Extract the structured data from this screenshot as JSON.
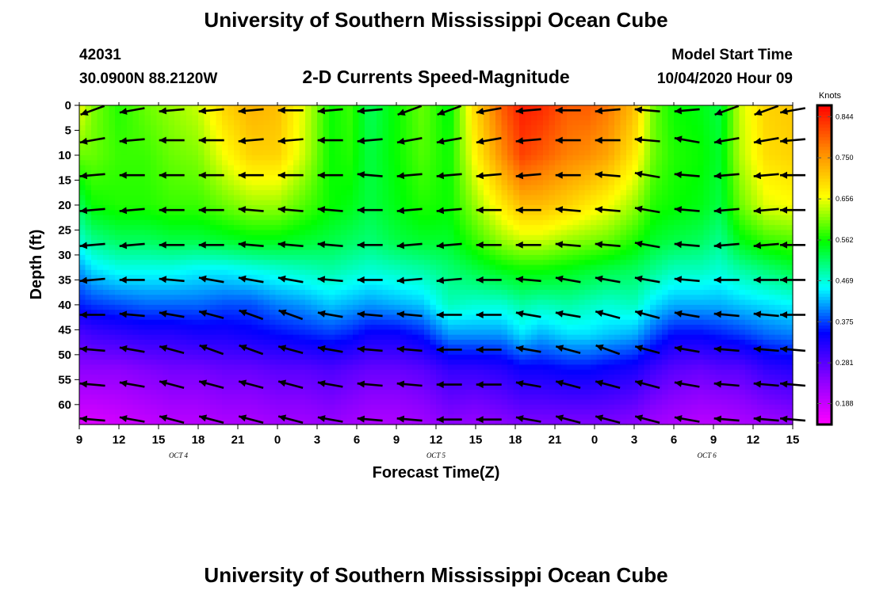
{
  "header": {
    "title": "University of Southern Mississippi Ocean Cube",
    "station_id": "42031",
    "location": "30.0900N 88.2120W",
    "chart_title": "2-D Currents Speed-Magnitude",
    "model_label": "Model Start Time",
    "model_time": "10/04/2020 Hour 09"
  },
  "footer": {
    "title": "University of Southern Mississippi Ocean Cube"
  },
  "chart_data": {
    "type": "heatmap",
    "title": "2-D Currents Speed-Magnitude",
    "xlabel": "Forecast Time(Z)",
    "ylabel": "Depth (ft)",
    "colorbar_label": "Knots",
    "colorbar_ticks": [
      "0.844",
      "0.750",
      "0.656",
      "0.562",
      "0.469",
      "0.375",
      "0.281",
      "0.188"
    ],
    "colorbar_values": [
      0.844,
      0.75,
      0.656,
      0.562,
      0.469,
      0.375,
      0.281,
      0.188
    ],
    "colorbar_range": [
      0.14,
      0.87
    ],
    "colormap": [
      "#ff00ff",
      "#8800ff",
      "#0000ff",
      "#00ffff",
      "#00ff00",
      "#ffff00",
      "#ff8800",
      "#ff0000"
    ],
    "x_tick_labels": [
      "9",
      "12",
      "15",
      "18",
      "21",
      "0",
      "3",
      "6",
      "9",
      "12",
      "15",
      "18",
      "21",
      "0",
      "3",
      "6",
      "9",
      "12",
      "15"
    ],
    "xlim_hours": [
      0,
      54
    ],
    "day_labels": [
      {
        "text": "OCT 4",
        "hour": 7.5
      },
      {
        "text": "OCT 5",
        "hour": 27
      },
      {
        "text": "OCT 6",
        "hour": 47.5
      }
    ],
    "y_tick_labels": [
      "0",
      "5",
      "10",
      "15",
      "20",
      "25",
      "30",
      "35",
      "40",
      "45",
      "50",
      "55",
      "60"
    ],
    "ylim": [
      0,
      64
    ],
    "speed_columns_hours": [
      0,
      1,
      3,
      5,
      7,
      9,
      11,
      13,
      15,
      17,
      19,
      20.5,
      22,
      24,
      26,
      28,
      30,
      32,
      33.5,
      35,
      37,
      38.5,
      40,
      42,
      43.5,
      45,
      47,
      48.5,
      50,
      52,
      54
    ],
    "speed_rows_depth_ft": [
      0,
      10,
      20,
      27,
      33,
      40,
      46,
      53,
      64
    ],
    "speed_knots": [
      [
        0.66,
        0.6,
        0.52,
        0.47,
        0.41,
        0.36,
        0.29,
        0.24,
        0.17
      ],
      [
        0.61,
        0.6,
        0.56,
        0.5,
        0.44,
        0.37,
        0.3,
        0.24,
        0.17
      ],
      [
        0.57,
        0.58,
        0.57,
        0.52,
        0.46,
        0.38,
        0.31,
        0.24,
        0.18
      ],
      [
        0.6,
        0.58,
        0.57,
        0.52,
        0.46,
        0.39,
        0.32,
        0.25,
        0.19
      ],
      [
        0.62,
        0.6,
        0.58,
        0.53,
        0.46,
        0.39,
        0.32,
        0.26,
        0.2
      ],
      [
        0.64,
        0.61,
        0.58,
        0.53,
        0.45,
        0.39,
        0.33,
        0.26,
        0.2
      ],
      [
        0.7,
        0.66,
        0.6,
        0.54,
        0.45,
        0.38,
        0.33,
        0.27,
        0.21
      ],
      [
        0.73,
        0.7,
        0.62,
        0.55,
        0.46,
        0.38,
        0.34,
        0.27,
        0.21
      ],
      [
        0.72,
        0.7,
        0.62,
        0.55,
        0.47,
        0.4,
        0.35,
        0.28,
        0.22
      ],
      [
        0.65,
        0.64,
        0.59,
        0.54,
        0.48,
        0.41,
        0.36,
        0.28,
        0.22
      ],
      [
        0.56,
        0.56,
        0.56,
        0.53,
        0.49,
        0.43,
        0.37,
        0.29,
        0.23
      ],
      [
        0.58,
        0.57,
        0.55,
        0.52,
        0.48,
        0.42,
        0.36,
        0.28,
        0.22
      ],
      [
        0.52,
        0.53,
        0.53,
        0.51,
        0.47,
        0.41,
        0.34,
        0.27,
        0.21
      ],
      [
        0.56,
        0.56,
        0.55,
        0.53,
        0.48,
        0.42,
        0.34,
        0.27,
        0.21
      ],
      [
        0.6,
        0.59,
        0.57,
        0.54,
        0.49,
        0.43,
        0.36,
        0.28,
        0.22
      ],
      [
        0.55,
        0.56,
        0.56,
        0.54,
        0.51,
        0.48,
        0.41,
        0.31,
        0.24
      ],
      [
        0.7,
        0.67,
        0.62,
        0.58,
        0.53,
        0.47,
        0.41,
        0.31,
        0.23
      ],
      [
        0.8,
        0.76,
        0.68,
        0.62,
        0.55,
        0.47,
        0.41,
        0.32,
        0.24
      ],
      [
        0.85,
        0.82,
        0.72,
        0.64,
        0.56,
        0.49,
        0.44,
        0.34,
        0.25
      ],
      [
        0.84,
        0.8,
        0.72,
        0.64,
        0.56,
        0.48,
        0.42,
        0.34,
        0.25
      ],
      [
        0.8,
        0.77,
        0.7,
        0.62,
        0.55,
        0.49,
        0.44,
        0.35,
        0.25
      ],
      [
        0.8,
        0.76,
        0.68,
        0.61,
        0.54,
        0.48,
        0.44,
        0.35,
        0.25
      ],
      [
        0.78,
        0.74,
        0.66,
        0.6,
        0.53,
        0.47,
        0.43,
        0.34,
        0.25
      ],
      [
        0.72,
        0.68,
        0.62,
        0.57,
        0.52,
        0.48,
        0.42,
        0.33,
        0.24
      ],
      [
        0.6,
        0.6,
        0.57,
        0.54,
        0.5,
        0.44,
        0.38,
        0.3,
        0.22
      ],
      [
        0.56,
        0.57,
        0.56,
        0.53,
        0.48,
        0.42,
        0.35,
        0.28,
        0.21
      ],
      [
        0.55,
        0.56,
        0.55,
        0.52,
        0.48,
        0.42,
        0.35,
        0.27,
        0.2
      ],
      [
        0.53,
        0.54,
        0.53,
        0.5,
        0.47,
        0.42,
        0.36,
        0.28,
        0.2
      ],
      [
        0.64,
        0.63,
        0.6,
        0.55,
        0.49,
        0.43,
        0.37,
        0.28,
        0.21
      ],
      [
        0.7,
        0.69,
        0.65,
        0.58,
        0.51,
        0.44,
        0.39,
        0.31,
        0.22
      ],
      [
        0.71,
        0.7,
        0.66,
        0.59,
        0.53,
        0.45,
        0.4,
        0.32,
        0.23
      ]
    ],
    "vector_columns_hours": [
      1,
      4,
      7,
      10,
      13,
      16,
      19,
      22,
      25,
      28,
      31,
      34,
      37,
      40,
      43,
      46,
      49,
      52,
      54
    ],
    "vector_rows_depth_ft": [
      1,
      7,
      14,
      21,
      28,
      35,
      42,
      49,
      56,
      63
    ],
    "vector_direction_deg": [
      [
        -20,
        -10,
        -5,
        -5,
        -5,
        0,
        -5,
        -5,
        -20,
        -20,
        -10,
        -5,
        0,
        -5,
        5,
        -5,
        -20,
        -20,
        -10
      ],
      [
        -10,
        -5,
        0,
        0,
        -5,
        -5,
        0,
        -5,
        -10,
        -10,
        -10,
        -5,
        0,
        0,
        5,
        10,
        -10,
        -10,
        -5
      ],
      [
        -5,
        0,
        0,
        0,
        0,
        0,
        0,
        5,
        -5,
        -5,
        -5,
        -5,
        0,
        5,
        10,
        5,
        -5,
        -5,
        0
      ],
      [
        -5,
        -5,
        0,
        0,
        5,
        5,
        5,
        0,
        -5,
        -5,
        0,
        0,
        5,
        5,
        10,
        5,
        -5,
        -5,
        0
      ],
      [
        -5,
        -5,
        0,
        0,
        5,
        5,
        5,
        0,
        -5,
        -5,
        0,
        0,
        5,
        5,
        10,
        5,
        -5,
        -5,
        0
      ],
      [
        -5,
        0,
        5,
        10,
        10,
        10,
        5,
        0,
        -5,
        -5,
        0,
        5,
        10,
        10,
        10,
        5,
        0,
        0,
        0
      ],
      [
        0,
        5,
        10,
        15,
        20,
        20,
        10,
        5,
        5,
        0,
        0,
        10,
        10,
        15,
        15,
        10,
        5,
        5,
        0
      ],
      [
        5,
        10,
        15,
        20,
        20,
        15,
        10,
        5,
        5,
        0,
        0,
        10,
        15,
        20,
        15,
        10,
        5,
        5,
        5
      ],
      [
        5,
        10,
        15,
        15,
        15,
        15,
        10,
        5,
        5,
        0,
        0,
        10,
        15,
        15,
        15,
        10,
        5,
        5,
        5
      ],
      [
        5,
        10,
        15,
        15,
        15,
        15,
        10,
        5,
        5,
        0,
        0,
        10,
        15,
        15,
        15,
        10,
        5,
        5,
        5
      ]
    ],
    "grid": false,
    "legend": "right"
  }
}
